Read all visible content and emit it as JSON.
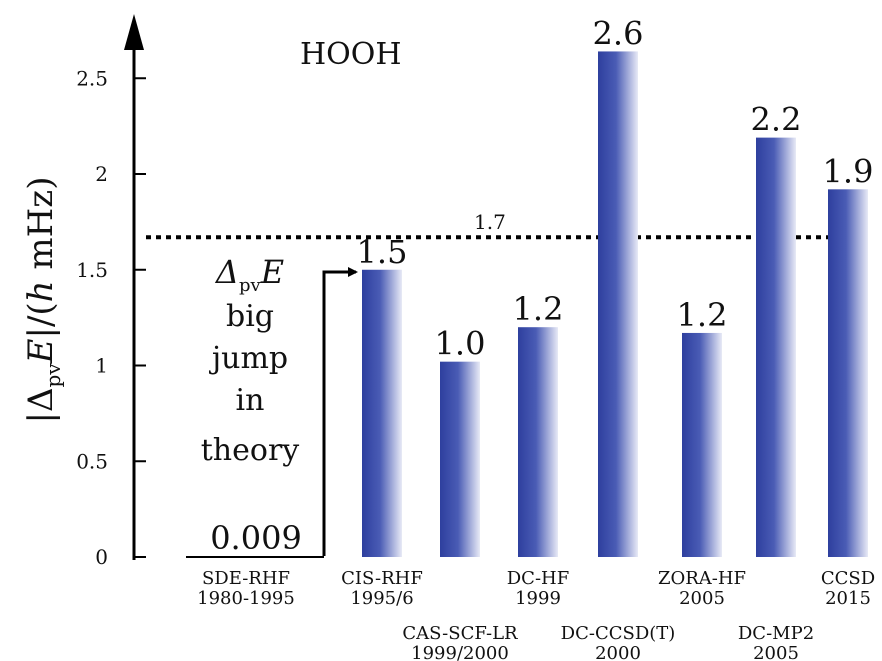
{
  "chart_data": {
    "type": "bar",
    "title": "HOOH",
    "ylabel": "|Δ_pv E|/(h mHz)",
    "ylim": [
      0,
      2.8
    ],
    "yticks": [
      0,
      0.5,
      1,
      1.5,
      2,
      2.5
    ],
    "ytick_labels": [
      "0",
      "0.5",
      "1",
      "1.5",
      "2",
      "2.5"
    ],
    "grid": false,
    "reference_line": {
      "value": 1.67,
      "label": "1.7",
      "style": "dotted"
    },
    "bar_color": "#3a4ca8",
    "categories": [
      {
        "method": "SDE-RHF",
        "years": "1980-1995",
        "value": 0.009,
        "label": "0.009",
        "bar": false,
        "row": 1
      },
      {
        "method": "CIS-RHF",
        "years": "1995/6",
        "value": 1.5,
        "label": "1.5",
        "bar": true,
        "row": 1
      },
      {
        "method": "CAS-SCF-LR",
        "years": "1999/2000",
        "value": 1.02,
        "label": "1.0",
        "bar": true,
        "row": 2
      },
      {
        "method": "DC-HF",
        "years": "1999",
        "value": 1.2,
        "label": "1.2",
        "bar": true,
        "row": 1
      },
      {
        "method": "DC-CCSD(T)",
        "years": "2000",
        "value": 2.64,
        "label": "2.6",
        "bar": true,
        "row": 2
      },
      {
        "method": "ZORA-HF",
        "years": "2005",
        "value": 1.17,
        "label": "1.2",
        "bar": true,
        "row": 1
      },
      {
        "method": "DC-MP2",
        "years": "2005",
        "value": 2.19,
        "label": "2.2",
        "bar": true,
        "row": 2
      },
      {
        "method": "CCSD",
        "years": "2015",
        "value": 1.92,
        "label": "1.9",
        "bar": true,
        "row": 1
      }
    ],
    "annotation": {
      "lines": [
        "Δ_pv E",
        "big",
        "jump",
        "in",
        "theory"
      ]
    }
  }
}
